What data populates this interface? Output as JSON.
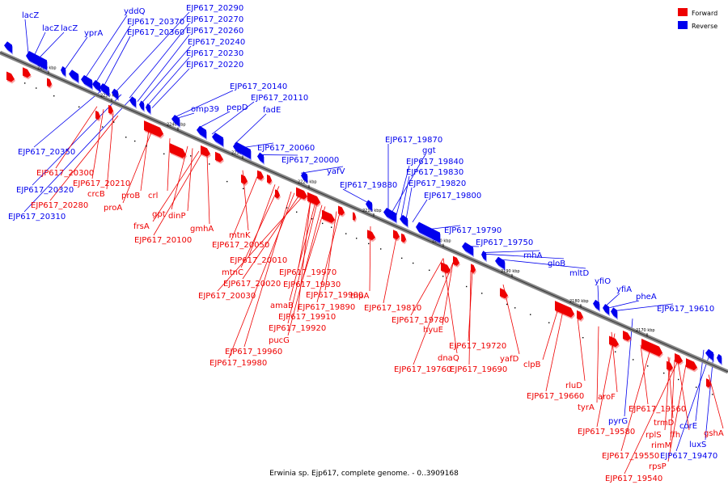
{
  "colors": {
    "forward": "#ee0000",
    "reverse": "#0000ee"
  },
  "legend": {
    "forward": "Forward",
    "reverse": "Reverse"
  },
  "caption": "Erwinia sp. Ejp617, complete genome. - 0..3909168",
  "ticks": [
    "2260 kbp",
    "2250 kbp",
    "2240 kbp",
    "2230 kbp",
    "2220 kbp",
    "2210 kbp",
    "2200 kbp",
    "2190 kbp",
    "2180 kbp",
    "2170 kbp"
  ],
  "reverse_labels": [
    "lacZ",
    "lacZ",
    "lacZ",
    "yprA",
    "yddQ",
    "EJP617_20370",
    "EJP617_20360",
    "EJP617_20290",
    "EJP617_20270",
    "EJP617_20260",
    "EJP617_20240",
    "EJP617_20230",
    "EJP617_20220",
    "EJP617_20140",
    "omp39",
    "pepD",
    "EJP617_20110",
    "fadE",
    "EJP617_20350",
    "EJP617_20320",
    "EJP617_20310",
    "EJP617_20060",
    "EJP617_20000",
    "yafV",
    "EJP617_19880",
    "EJP617_19870",
    "ggt",
    "EJP617_19840",
    "EJP617_19830",
    "EJP617_19820",
    "EJP617_19800",
    "EJP617_19790",
    "EJP617_19750",
    "rnhA",
    "gloB",
    "mltD",
    "yfiO",
    "yfiA",
    "pheA",
    "EJP617_19610",
    "pyrG",
    "corE",
    "luxS",
    "EJP617_19470"
  ],
  "forward_labels": [
    "EJP617_20300",
    "EJP617_20210",
    "crcB",
    "EJP617_20280",
    "proB",
    "proA",
    "crl",
    "gpt",
    "dinP",
    "frsA",
    "gmhA",
    "EJP617_20100",
    "mtnK",
    "EJP617_20050",
    "EJP617_20010",
    "mtnC",
    "EJP617_20020",
    "EJP617_20030",
    "EJP617_19970",
    "EJP617_19930",
    "EJP617_19900",
    "amaB",
    "EJP617_19890",
    "EJP617_19910",
    "EJP617_19920",
    "pucG",
    "EJP617_19960",
    "EJP617_19980",
    "tnpA",
    "EJP617_19810",
    "EJP617_19780",
    "hyuE",
    "EJP617_19720",
    "dnaQ",
    "EJP617_19760",
    "EJP617_19690",
    "yafD",
    "clpB",
    "rluD",
    "EJP617_19660",
    "aroF",
    "tyrA",
    "EJP617_19560",
    "EJP617_19580",
    "trmD",
    "rplS",
    "ffh",
    "rimM",
    "EJP617_19550",
    "rpsP",
    "gshA",
    "EJP617_19540"
  ]
}
